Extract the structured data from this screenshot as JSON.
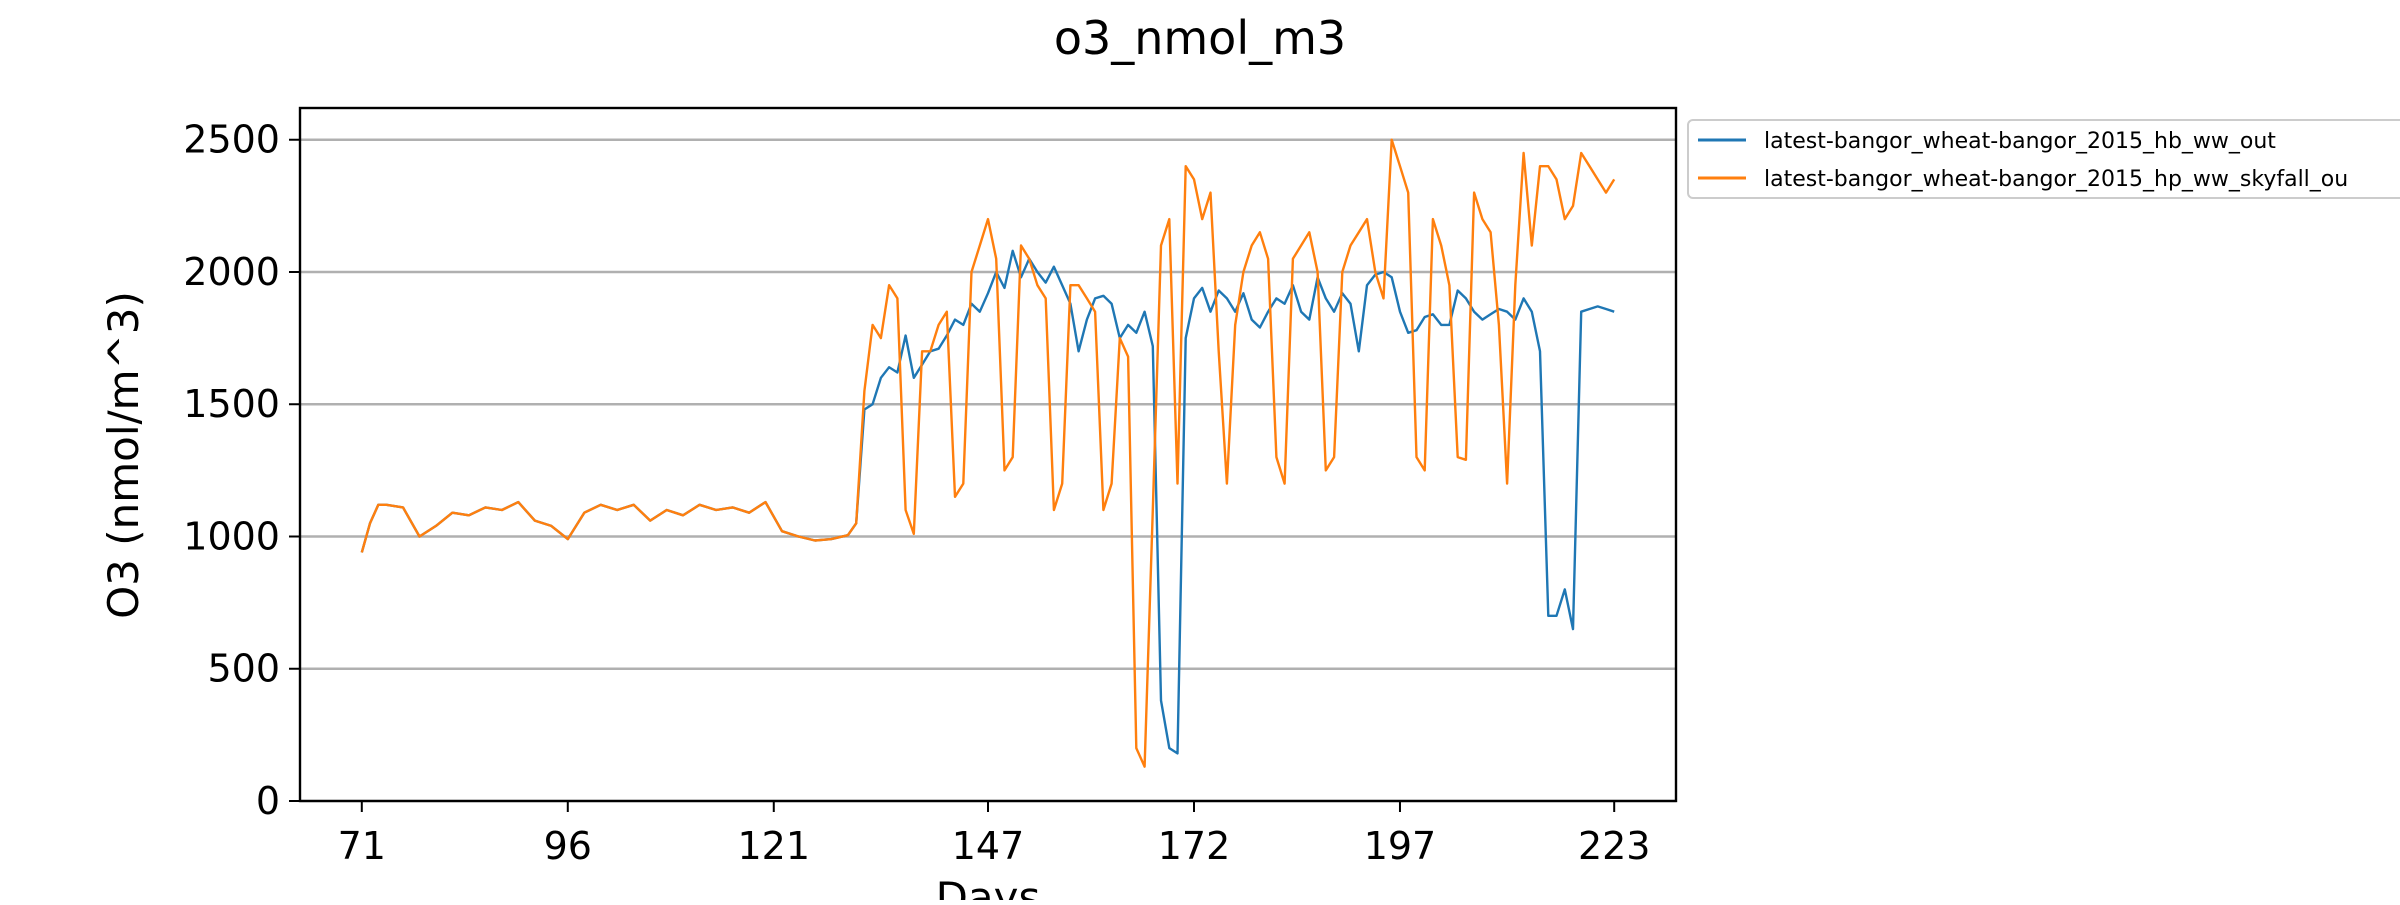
{
  "chart_data": {
    "type": "line",
    "title": "o3_nmol_m3",
    "xlabel": "Days",
    "ylabel": "O3 (nmol/m^3)",
    "xlim": [
      63.5,
      230.5
    ],
    "ylim": [
      0,
      2620
    ],
    "xticks": [
      71,
      96,
      121,
      147,
      172,
      197,
      223
    ],
    "yticks": [
      0,
      500,
      1000,
      1500,
      2000,
      2500
    ],
    "grid": "horizontal",
    "legend": "outside-top-right",
    "series": [
      {
        "name": "latest-bangor_wheat-bangor_2015_hb_ww_out",
        "color": "#1f77b4",
        "x": [
          71,
          72,
          73,
          74,
          76,
          78,
          80,
          82,
          84,
          86,
          88,
          90,
          92,
          94,
          96,
          98,
          100,
          102,
          104,
          106,
          108,
          110,
          112,
          114,
          116,
          118,
          120,
          122,
          124,
          126,
          128,
          130,
          131,
          132,
          133,
          134,
          135,
          136,
          137,
          138,
          139,
          140,
          141,
          142,
          143,
          144,
          145,
          146,
          147,
          148,
          149,
          150,
          151,
          152,
          153,
          154,
          155,
          156,
          157,
          158,
          159,
          160,
          161,
          162,
          163,
          164,
          165,
          166,
          167,
          168,
          169,
          170,
          171,
          172,
          173,
          174,
          175,
          176,
          177,
          178,
          179,
          180,
          181,
          182,
          183,
          184,
          185,
          186,
          187,
          188,
          189,
          190,
          191,
          192,
          193,
          194,
          195,
          196,
          197,
          198,
          199,
          200,
          201,
          202,
          203,
          204,
          205,
          206,
          207,
          208,
          209,
          210,
          211,
          212,
          213,
          214,
          215,
          216,
          217,
          218,
          219,
          220,
          221,
          222,
          223
        ],
        "values": [
          940,
          1050,
          1120,
          1120,
          1110,
          1000,
          1040,
          1090,
          1080,
          1110,
          1100,
          1130,
          1060,
          1040,
          990,
          1090,
          1120,
          1100,
          1120,
          1060,
          1100,
          1080,
          1120,
          1100,
          1110,
          1090,
          1130,
          1020,
          1000,
          985,
          990,
          1005,
          1050,
          1480,
          1500,
          1600,
          1640,
          1620,
          1760,
          1600,
          1650,
          1700,
          1710,
          1760,
          1820,
          1800,
          1880,
          1850,
          1920,
          2000,
          1940,
          2080,
          1980,
          2050,
          2000,
          1960,
          2020,
          1950,
          1880,
          1700,
          1820,
          1900,
          1910,
          1880,
          1750,
          1800,
          1770,
          1850,
          1720,
          380,
          200,
          180,
          1750,
          1900,
          1940,
          1850,
          1930,
          1900,
          1850,
          1920,
          1820,
          1790,
          1850,
          1900,
          1880,
          1950,
          1850,
          1820,
          1980,
          1900,
          1850,
          1920,
          1880,
          1700,
          1950,
          1990,
          2000,
          1980,
          1850,
          1770,
          1780,
          1830,
          1840,
          1800,
          1800,
          1930,
          1900,
          1850,
          1820,
          1840,
          1860,
          1850,
          1820,
          1900,
          1850,
          1700,
          700,
          700,
          800,
          650,
          1850,
          1860,
          1870,
          1860,
          1850
        ],
        "_note": "x values in days; series shown in chart"
      },
      {
        "name": "latest-bangor_wheat-bangor_2015_hp_ww_skyfall_ou",
        "color": "#ff7f0e",
        "x": [
          71,
          72,
          73,
          74,
          76,
          78,
          80,
          82,
          84,
          86,
          88,
          90,
          92,
          94,
          96,
          98,
          100,
          102,
          104,
          106,
          108,
          110,
          112,
          114,
          116,
          118,
          120,
          122,
          124,
          126,
          128,
          130,
          131,
          132,
          133,
          134,
          135,
          136,
          137,
          138,
          139,
          140,
          141,
          142,
          143,
          144,
          145,
          146,
          147,
          148,
          149,
          150,
          151,
          152,
          153,
          154,
          155,
          156,
          157,
          158,
          159,
          160,
          161,
          162,
          163,
          164,
          165,
          166,
          167,
          168,
          169,
          170,
          171,
          172,
          173,
          174,
          175,
          176,
          177,
          178,
          179,
          180,
          181,
          182,
          183,
          184,
          185,
          186,
          187,
          188,
          189,
          190,
          191,
          192,
          193,
          194,
          195,
          196,
          197,
          198,
          199,
          200,
          201,
          202,
          203,
          204,
          205,
          206,
          207,
          208,
          209,
          210,
          211,
          212,
          213,
          214,
          215,
          216,
          217,
          218,
          219,
          220,
          221,
          222,
          223
        ],
        "values": [
          940,
          1050,
          1120,
          1120,
          1110,
          1000,
          1040,
          1090,
          1080,
          1110,
          1100,
          1130,
          1060,
          1040,
          990,
          1090,
          1120,
          1100,
          1120,
          1060,
          1100,
          1080,
          1120,
          1100,
          1110,
          1090,
          1130,
          1020,
          1000,
          985,
          990,
          1005,
          1050,
          1550,
          1800,
          1750,
          1950,
          1900,
          1100,
          1010,
          1700,
          1700,
          1800,
          1850,
          1150,
          1200,
          2000,
          2100,
          2200,
          2050,
          1250,
          1300,
          2100,
          2050,
          1950,
          1900,
          1100,
          1200,
          1950,
          1950,
          1900,
          1850,
          1100,
          1200,
          1750,
          1680,
          200,
          130,
          1100,
          2100,
          2200,
          1200,
          2400,
          2350,
          2200,
          2300,
          1700,
          1200,
          1800,
          2000,
          2100,
          2150,
          2050,
          1300,
          1200,
          2050,
          2100,
          2150,
          2000,
          1250,
          1300,
          2000,
          2100,
          2150,
          2200,
          2000,
          1900,
          2500,
          2400,
          2300,
          1300,
          1250,
          2200,
          2100,
          1950,
          1300,
          1290,
          2300,
          2200,
          2150,
          1800,
          1200,
          1950,
          2450,
          2100,
          2400,
          2400,
          2350,
          2200,
          2250,
          2450,
          2400,
          2350,
          2300,
          2350
        ]
      }
    ]
  }
}
